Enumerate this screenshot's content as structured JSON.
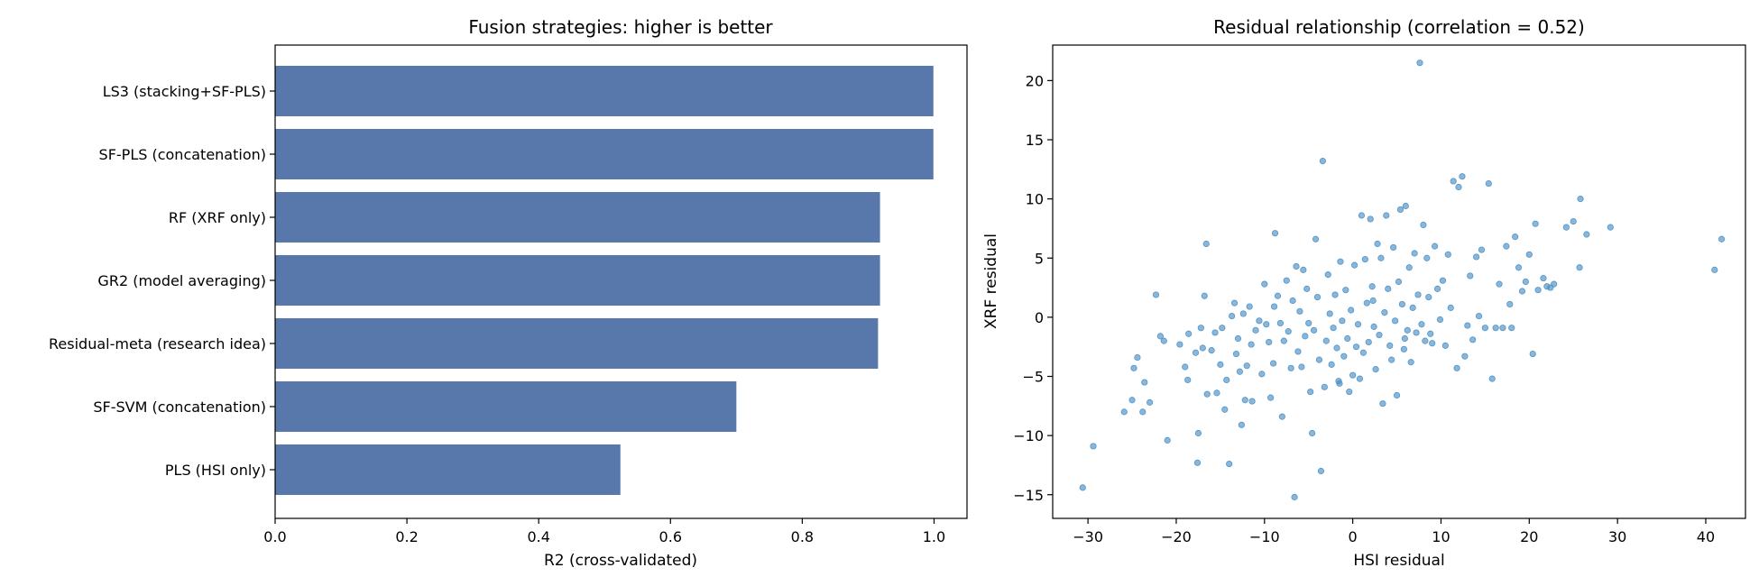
{
  "chart_data": [
    {
      "type": "bar",
      "orientation": "horizontal",
      "title": "Fusion strategies: higher is better",
      "xlabel": "R2 (cross-validated)",
      "ylabel": "",
      "xlim": [
        0,
        1.05
      ],
      "xticks": [
        0.0,
        0.2,
        0.4,
        0.6,
        0.8,
        1.0
      ],
      "xtick_labels": [
        "0.0",
        "0.2",
        "0.4",
        "0.6",
        "0.8",
        "1.0"
      ],
      "categories": [
        "LS3 (stacking+SF-PLS)",
        "SF-PLS (concatenation)",
        "RF (XRF only)",
        "GR2 (model averaging)",
        "Residual-meta (research idea)",
        "SF-SVM (concatenation)",
        "PLS (HSI only)"
      ],
      "values": [
        0.999,
        0.999,
        0.918,
        0.918,
        0.915,
        0.7,
        0.524
      ],
      "color": "#5878ab",
      "grid": false
    },
    {
      "type": "scatter",
      "title": "Residual relationship (correlation = 0.52)",
      "xlabel": "HSI residual",
      "ylabel": "XRF residual",
      "xlim": [
        -34,
        44.5
      ],
      "ylim": [
        -17,
        23
      ],
      "xticks": [
        -30,
        -20,
        -10,
        0,
        10,
        20,
        30,
        40
      ],
      "xtick_labels": [
        "−30",
        "−20",
        "−10",
        "0",
        "10",
        "20",
        "30",
        "40"
      ],
      "yticks": [
        -15,
        -10,
        -5,
        0,
        5,
        10,
        15,
        20
      ],
      "ytick_labels": [
        "−15",
        "−10",
        "−5",
        "0",
        "5",
        "10",
        "15",
        "20"
      ],
      "color": "#4a8fc4",
      "grid": false,
      "points": [
        [
          -30.6,
          -14.4
        ],
        [
          -29.4,
          -10.9
        ],
        [
          -25.9,
          -8.0
        ],
        [
          -25.0,
          -7.0
        ],
        [
          -24.8,
          -4.3
        ],
        [
          -24.4,
          -3.4
        ],
        [
          -23.8,
          -8.0
        ],
        [
          -23.6,
          -5.5
        ],
        [
          -23.0,
          -7.2
        ],
        [
          -22.3,
          1.9
        ],
        [
          -21.8,
          -1.6
        ],
        [
          -21.4,
          -2.0
        ],
        [
          -21.0,
          -10.4
        ],
        [
          -19.6,
          -2.3
        ],
        [
          -19.0,
          -4.2
        ],
        [
          -18.7,
          -5.3
        ],
        [
          -18.6,
          -1.4
        ],
        [
          -17.8,
          -3.0
        ],
        [
          -17.6,
          -12.3
        ],
        [
          -17.5,
          -9.8
        ],
        [
          -17.2,
          -0.9
        ],
        [
          -17.0,
          -2.6
        ],
        [
          -16.8,
          1.8
        ],
        [
          -16.6,
          6.2
        ],
        [
          -16.5,
          -6.5
        ],
        [
          -16.0,
          -2.8
        ],
        [
          -15.6,
          -1.3
        ],
        [
          -15.4,
          -6.4
        ],
        [
          -15.0,
          -4.0
        ],
        [
          -14.8,
          -0.9
        ],
        [
          -14.5,
          -7.8
        ],
        [
          -14.3,
          -5.3
        ],
        [
          -14.0,
          -12.4
        ],
        [
          -13.7,
          0.1
        ],
        [
          -13.4,
          1.2
        ],
        [
          -13.2,
          -3.1
        ],
        [
          -13.0,
          -1.8
        ],
        [
          -12.6,
          -9.1
        ],
        [
          -12.4,
          0.3
        ],
        [
          -12.2,
          -7.0
        ],
        [
          -12.0,
          -4.1
        ],
        [
          -11.7,
          0.9
        ],
        [
          -11.5,
          -2.3
        ],
        [
          -11.4,
          -7.1
        ],
        [
          -11.0,
          -1.1
        ],
        [
          -10.6,
          -0.3
        ],
        [
          -10.3,
          -4.8
        ],
        [
          -10.0,
          2.8
        ],
        [
          -9.8,
          -0.6
        ],
        [
          -9.5,
          -2.1
        ],
        [
          -9.3,
          -6.8
        ],
        [
          -9.0,
          -3.9
        ],
        [
          -8.8,
          7.1
        ],
        [
          -8.5,
          1.8
        ],
        [
          -8.2,
          -0.5
        ],
        [
          -8.0,
          -8.4
        ],
        [
          -7.8,
          -2.0
        ],
        [
          -7.5,
          3.1
        ],
        [
          -7.3,
          -1.2
        ],
        [
          -7.0,
          -4.3
        ],
        [
          -6.8,
          1.4
        ],
        [
          -6.6,
          -15.2
        ],
        [
          -6.4,
          4.3
        ],
        [
          -6.2,
          -2.9
        ],
        [
          -6.0,
          0.5
        ],
        [
          -5.8,
          -4.2
        ],
        [
          -5.6,
          4.0
        ],
        [
          -5.4,
          -1.6
        ],
        [
          -5.2,
          2.4
        ],
        [
          -5.0,
          -0.5
        ],
        [
          -4.8,
          -6.3
        ],
        [
          -4.6,
          -9.8
        ],
        [
          -4.4,
          -1.1
        ],
        [
          -4.2,
          6.6
        ],
        [
          -4.0,
          1.7
        ],
        [
          -3.8,
          -3.6
        ],
        [
          -3.6,
          -13.0
        ],
        [
          -3.4,
          13.2
        ],
        [
          -3.2,
          -5.9
        ],
        [
          -3.0,
          -2.0
        ],
        [
          -2.8,
          3.6
        ],
        [
          -2.6,
          0.3
        ],
        [
          -2.4,
          -4.0
        ],
        [
          -2.2,
          -0.9
        ],
        [
          -2.0,
          1.9
        ],
        [
          -1.8,
          -2.6
        ],
        [
          -1.6,
          -5.4
        ],
        [
          -1.4,
          4.7
        ],
        [
          -1.2,
          -0.3
        ],
        [
          -1.0,
          -3.3
        ],
        [
          -0.8,
          2.3
        ],
        [
          -0.6,
          -1.8
        ],
        [
          -0.4,
          -6.3
        ],
        [
          -0.2,
          0.6
        ],
        [
          0.0,
          -4.9
        ],
        [
          0.2,
          4.4
        ],
        [
          0.4,
          -2.5
        ],
        [
          0.6,
          -0.6
        ],
        [
          0.8,
          -5.2
        ],
        [
          1.0,
          8.6
        ],
        [
          1.2,
          -3.0
        ],
        [
          1.4,
          4.9
        ],
        [
          1.6,
          1.2
        ],
        [
          1.8,
          -2.1
        ],
        [
          2.0,
          8.3
        ],
        [
          2.2,
          2.6
        ],
        [
          2.4,
          -0.8
        ],
        [
          2.6,
          -4.4
        ],
        [
          2.8,
          6.2
        ],
        [
          3.0,
          -1.5
        ],
        [
          3.2,
          5.0
        ],
        [
          3.4,
          -7.3
        ],
        [
          3.6,
          0.4
        ],
        [
          3.8,
          8.6
        ],
        [
          4.0,
          2.4
        ],
        [
          4.2,
          -2.4
        ],
        [
          4.4,
          -3.6
        ],
        [
          4.6,
          5.9
        ],
        [
          4.8,
          -0.3
        ],
        [
          5.0,
          -6.6
        ],
        [
          5.2,
          3.0
        ],
        [
          5.4,
          9.1
        ],
        [
          5.6,
          1.1
        ],
        [
          5.8,
          -2.7
        ],
        [
          6.0,
          9.4
        ],
        [
          6.2,
          -1.1
        ],
        [
          6.4,
          4.2
        ],
        [
          6.6,
          -3.8
        ],
        [
          6.8,
          0.8
        ],
        [
          7.0,
          5.4
        ],
        [
          7.2,
          -1.3
        ],
        [
          7.4,
          1.9
        ],
        [
          7.6,
          21.5
        ],
        [
          7.8,
          -0.6
        ],
        [
          8.0,
          7.8
        ],
        [
          8.2,
          -2.0
        ],
        [
          8.4,
          5.0
        ],
        [
          8.6,
          1.7
        ],
        [
          8.8,
          -1.4
        ],
        [
          9.0,
          -2.2
        ],
        [
          9.3,
          6.0
        ],
        [
          9.6,
          2.4
        ],
        [
          9.9,
          -0.2
        ],
        [
          10.2,
          3.1
        ],
        [
          10.5,
          -2.4
        ],
        [
          10.8,
          5.3
        ],
        [
          11.1,
          0.8
        ],
        [
          11.4,
          11.5
        ],
        [
          11.8,
          -4.3
        ],
        [
          12.0,
          11.0
        ],
        [
          12.4,
          11.9
        ],
        [
          12.7,
          -3.3
        ],
        [
          13.0,
          -0.7
        ],
        [
          13.3,
          3.5
        ],
        [
          13.6,
          -1.9
        ],
        [
          14.0,
          5.1
        ],
        [
          14.3,
          0.1
        ],
        [
          14.6,
          5.7
        ],
        [
          15.0,
          -0.9
        ],
        [
          15.4,
          11.3
        ],
        [
          15.8,
          -5.2
        ],
        [
          16.2,
          -0.9
        ],
        [
          16.6,
          2.8
        ],
        [
          17.0,
          -0.9
        ],
        [
          17.4,
          6.0
        ],
        [
          17.8,
          1.1
        ],
        [
          18.0,
          -0.9
        ],
        [
          18.4,
          6.8
        ],
        [
          18.8,
          4.2
        ],
        [
          19.2,
          2.2
        ],
        [
          19.6,
          3.0
        ],
        [
          20.0,
          5.3
        ],
        [
          20.4,
          -3.1
        ],
        [
          20.7,
          7.9
        ],
        [
          21.0,
          2.3
        ],
        [
          21.6,
          3.3
        ],
        [
          22.0,
          2.6
        ],
        [
          22.4,
          2.5
        ],
        [
          22.8,
          2.8
        ],
        [
          24.2,
          7.6
        ],
        [
          25.0,
          8.1
        ],
        [
          25.7,
          4.2
        ],
        [
          25.8,
          10.0
        ],
        [
          26.5,
          7.0
        ],
        [
          29.2,
          7.6
        ],
        [
          41.0,
          4.0
        ],
        [
          41.8,
          6.6
        ],
        [
          -1.5,
          -5.6
        ],
        [
          2.3,
          1.4
        ],
        [
          -8.9,
          0.9
        ],
        [
          -12.8,
          -4.6
        ],
        [
          5.9,
          -1.8
        ]
      ]
    }
  ]
}
